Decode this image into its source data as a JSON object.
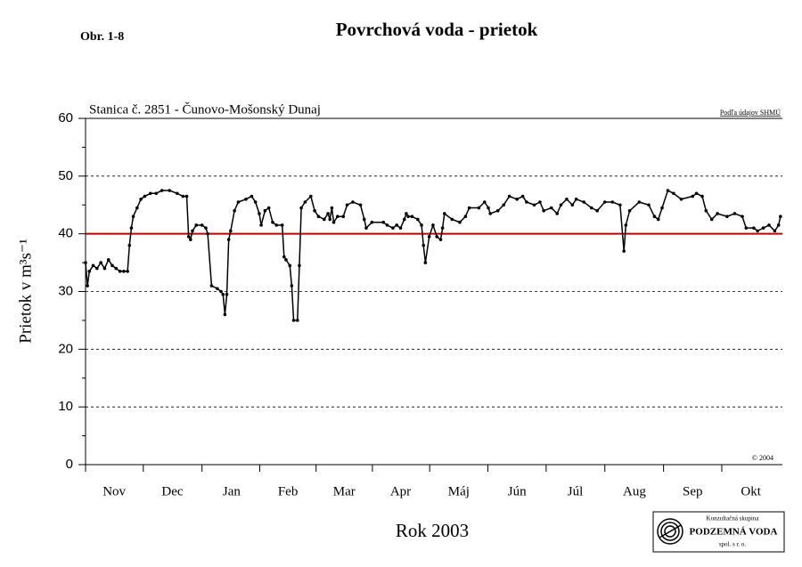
{
  "chart_data": {
    "type": "line",
    "figure_label": "Obr. 1-8",
    "title": "Povrchová voda - prietok",
    "subtitle": "Stanica č. 2851 - Čunovo-Mošonský Dunaj",
    "source": "Podľa údajov SHMÚ",
    "copyright": "© 2004",
    "y_label": "Prietok v m³s⁻¹",
    "x_label": "Rok 2003",
    "logo": [
      "Konzultačná skupina",
      "PODZEMNÁ VODA",
      "spol. s r. o."
    ],
    "xlim": [
      0,
      365
    ],
    "xticks": [
      {
        "value": 15,
        "label": "Nov"
      },
      {
        "value": 45.5,
        "label": "Dec"
      },
      {
        "value": 76.5,
        "label": "Jan"
      },
      {
        "value": 106,
        "label": "Feb"
      },
      {
        "value": 135.5,
        "label": "Mar"
      },
      {
        "value": 165,
        "label": "Apr"
      },
      {
        "value": 195.5,
        "label": "Máj"
      },
      {
        "value": 226,
        "label": "Jún"
      },
      {
        "value": 256.5,
        "label": "Júl"
      },
      {
        "value": 287.5,
        "label": "Aug"
      },
      {
        "value": 318,
        "label": "Sep"
      },
      {
        "value": 348.5,
        "label": "Okt"
      }
    ],
    "ylim": [
      0,
      60
    ],
    "yticks": [
      0,
      10,
      20,
      30,
      40,
      50,
      60
    ],
    "grid": true,
    "threshold": {
      "value": 40,
      "color": "#c00000"
    },
    "x": [
      0,
      1,
      2,
      4,
      6,
      8,
      10,
      12,
      14,
      16,
      18,
      20,
      22,
      23,
      24,
      25,
      27,
      29,
      31,
      34,
      37,
      40,
      44,
      48,
      51,
      53,
      54,
      55,
      56,
      58,
      61,
      63,
      64,
      66,
      69,
      71,
      72,
      73,
      74,
      75,
      76,
      78,
      80,
      84,
      87,
      89,
      91,
      92,
      94,
      96,
      98,
      100,
      103,
      104,
      105,
      107,
      108,
      109,
      111,
      112,
      113,
      115,
      118,
      120,
      122,
      125,
      127,
      128,
      129,
      130,
      132,
      135,
      137,
      140,
      144,
      146,
      147,
      150,
      156,
      158,
      161,
      163,
      165,
      167,
      168,
      169,
      171,
      174,
      176,
      177,
      178,
      180,
      182,
      184,
      186,
      187,
      188,
      192,
      196,
      199,
      201,
      206,
      209,
      211,
      212,
      216,
      219,
      222,
      226,
      229,
      231,
      235,
      238,
      240,
      244,
      247,
      249,
      252,
      255,
      257,
      261,
      265,
      268,
      272,
      276,
      280,
      282,
      283,
      285,
      290,
      295,
      298,
      300,
      302,
      305,
      308,
      312,
      318,
      320,
      323,
      325,
      328,
      331,
      336,
      340,
      344,
      346,
      350,
      352,
      355,
      358,
      361,
      363,
      364
    ],
    "series": [
      {
        "name": "Prietok",
        "color": "#000000",
        "values": [
          35,
          31,
          33.5,
          34.5,
          34,
          35,
          34,
          35.5,
          34.5,
          34,
          33.5,
          33.5,
          33.5,
          38,
          41,
          43,
          44.5,
          46,
          46.5,
          47,
          47,
          47.5,
          47.5,
          47,
          46.5,
          46.5,
          39.5,
          39,
          40.5,
          41.5,
          41.5,
          41,
          40,
          31,
          30.5,
          30,
          29.5,
          26,
          29.5,
          39,
          40.5,
          44,
          45.5,
          46,
          46.5,
          45.5,
          43.5,
          41.5,
          44,
          44.5,
          42,
          41.5,
          41.5,
          36,
          35.5,
          34.5,
          31,
          25,
          25,
          34.5,
          44.5,
          45.5,
          46.5,
          44,
          43,
          42.5,
          43.5,
          42.5,
          44.5,
          42,
          43,
          43,
          45,
          45.5,
          45,
          42.5,
          41,
          42,
          42,
          41.5,
          41,
          41.5,
          41,
          42.5,
          43.5,
          43,
          43,
          42.5,
          41.5,
          38,
          35,
          39.5,
          41.5,
          39.5,
          39,
          41,
          43.5,
          42.5,
          42,
          43,
          44.5,
          44.5,
          45.5,
          44.5,
          43.5,
          44,
          45,
          46.5,
          46,
          46.5,
          45.5,
          45,
          45.5,
          44,
          44.5,
          43.5,
          45,
          46,
          45,
          46,
          45.5,
          44.5,
          44,
          45.5,
          45.5,
          45,
          37,
          41.5,
          44,
          45.5,
          45,
          43,
          42.5,
          44.5,
          47.5,
          47,
          46,
          46.5,
          47,
          46.5,
          44,
          42.5,
          43.5,
          43,
          43.5,
          43,
          41,
          41,
          40.5,
          41,
          41.5,
          40.5,
          41.5,
          43
        ]
      }
    ]
  }
}
